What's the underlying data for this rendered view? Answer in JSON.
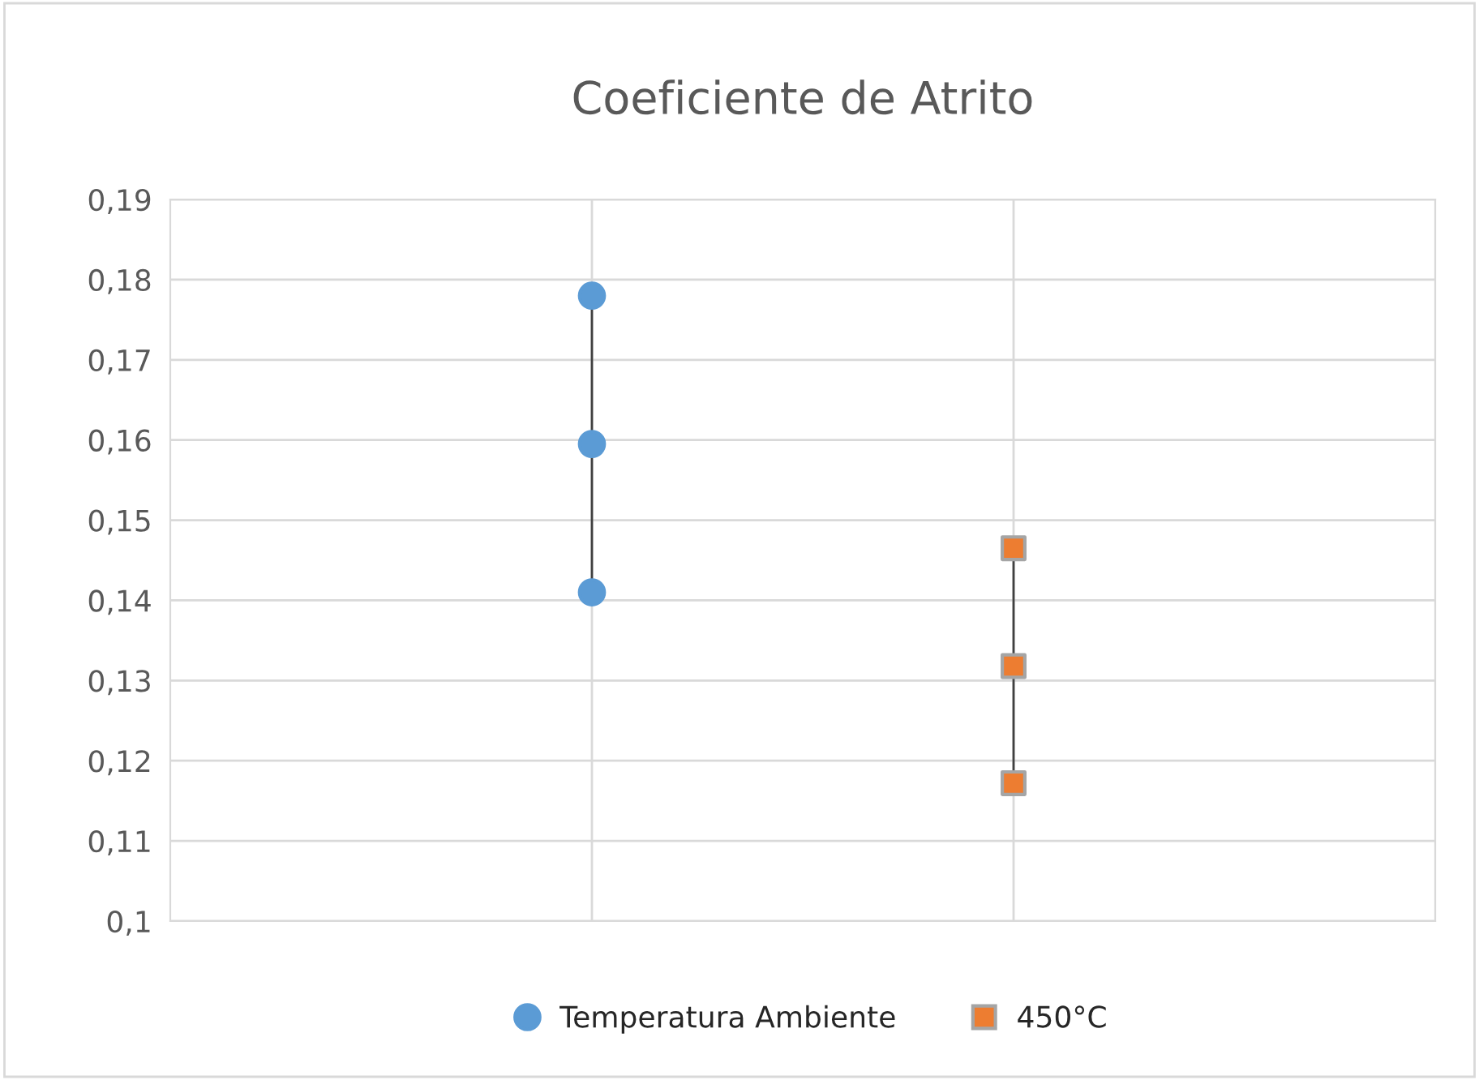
{
  "chart_data": {
    "type": "scatter",
    "title": "Coeficiente de Atrito",
    "categories": [
      null,
      null
    ],
    "series": [
      {
        "name": "Temperatura Ambiente",
        "color": "#5b9bd5",
        "marker": "circle",
        "values": [
          0.1595,
          null
        ]
      },
      {
        "color": "#5b9bd5",
        "marker": "circle",
        "values": [
          0.178,
          null
        ]
      },
      {
        "color": "#5b9bd5",
        "marker": "circle",
        "values": [
          0.141,
          null
        ]
      },
      {
        "name": "450°C",
        "color": "#ed7d31",
        "marker": "square",
        "values": [
          null,
          0.1318
        ]
      },
      {
        "color": "#ed7d31",
        "marker": "square",
        "values": [
          null,
          0.1465
        ]
      },
      {
        "color": "#ed7d31",
        "marker": "square",
        "values": [
          null,
          0.1172
        ]
      }
    ],
    "ylim": [
      0.1,
      0.19
    ],
    "yticks": [
      {
        "value": 0.1,
        "label": "0,1"
      },
      {
        "value": 0.11,
        "label": "0,11"
      },
      {
        "value": 0.12,
        "label": "0,12"
      },
      {
        "value": 0.13,
        "label": "0,13"
      },
      {
        "value": 0.14,
        "label": "0,14"
      },
      {
        "value": 0.15,
        "label": "0,15"
      },
      {
        "value": 0.16,
        "label": "0,16"
      },
      {
        "value": 0.17,
        "label": "0,17"
      },
      {
        "value": 0.18,
        "label": "0,18"
      },
      {
        "value": 0.19,
        "label": "0,19"
      }
    ],
    "grid": true,
    "legend": "bottom",
    "line_style": "solid"
  }
}
